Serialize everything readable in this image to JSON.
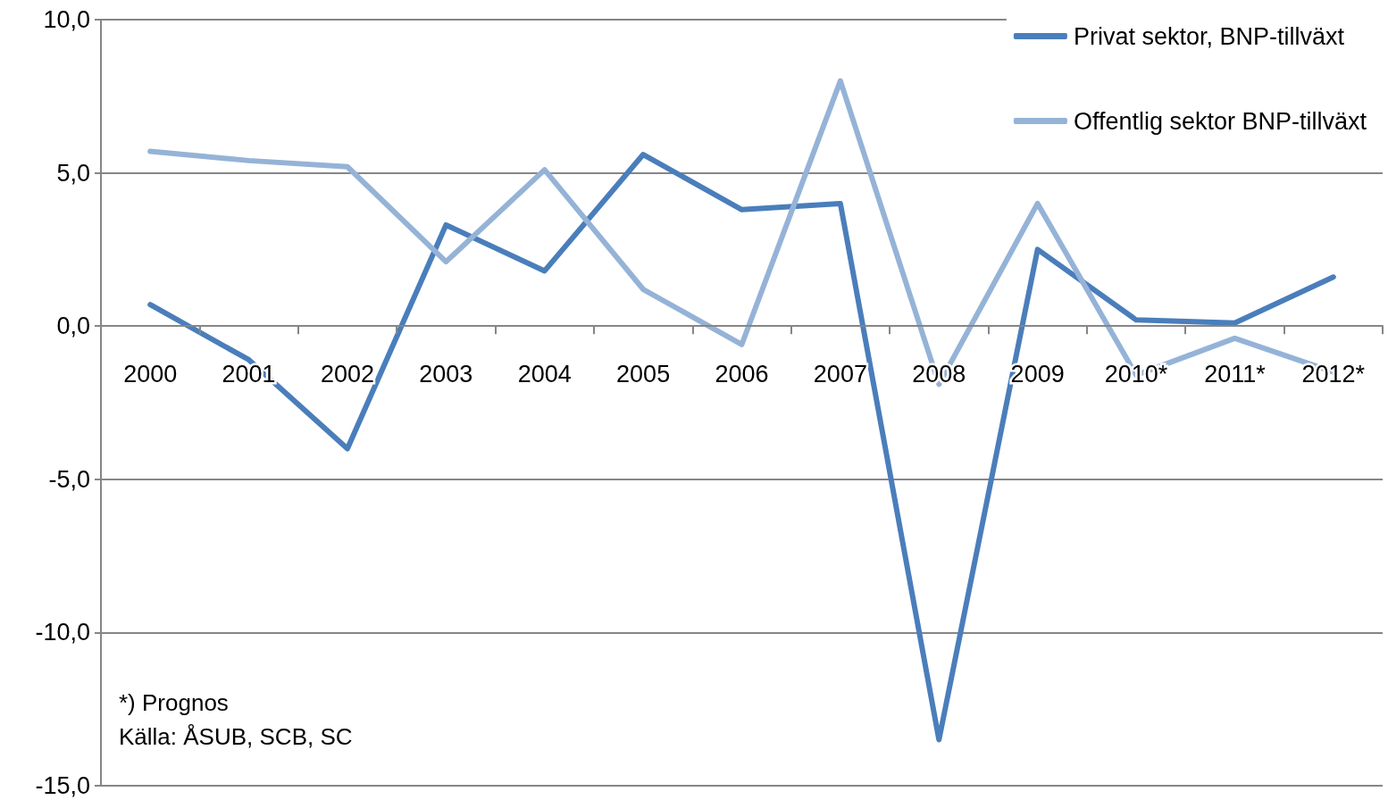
{
  "chart_data": {
    "type": "line",
    "categories": [
      "2000",
      "2001",
      "2002",
      "2003",
      "2004",
      "2005",
      "2006",
      "2007",
      "2008",
      "2009",
      "2010*",
      "2011*",
      "2012*"
    ],
    "series": [
      {
        "name": "Privat sektor, BNP-tillväxt",
        "color": "#4a7ebb",
        "values": [
          0.7,
          -1.1,
          -4.0,
          3.3,
          1.8,
          5.6,
          3.8,
          4.0,
          -13.5,
          2.5,
          0.2,
          0.1,
          1.6
        ]
      },
      {
        "name": "Offentlig sektor BNP-tillväxt",
        "color": "#95b3d7",
        "values": [
          5.7,
          5.4,
          5.2,
          2.1,
          5.1,
          1.2,
          -0.6,
          8.0,
          -1.9,
          4.0,
          -1.6,
          -0.4,
          -1.5
        ]
      }
    ],
    "ylim": [
      -15,
      10
    ],
    "yticks": [
      {
        "value": -15,
        "label": "-15,0"
      },
      {
        "value": -10,
        "label": "-10,0"
      },
      {
        "value": -5,
        "label": "-5,0"
      },
      {
        "value": 0,
        "label": "0,0"
      },
      {
        "value": 5,
        "label": "5,0"
      },
      {
        "value": 10,
        "label": "10,0"
      }
    ],
    "grid": "y",
    "legend": "top right",
    "marker": "none",
    "line_style": "solid",
    "annotations": [
      "*) Prognos",
      "Källa: ÅSUB, SCB, SC"
    ]
  }
}
